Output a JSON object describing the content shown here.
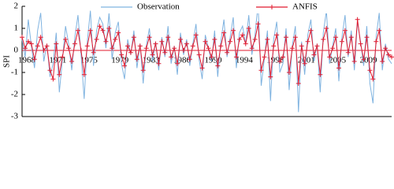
{
  "chart_data": {
    "type": "line",
    "y_label": "SPI",
    "categories": [
      "1968",
      null,
      null,
      null,
      null,
      null,
      null,
      null,
      null,
      null,
      "1971",
      null,
      null,
      null,
      null,
      null,
      null,
      null,
      null,
      null,
      "1975",
      null,
      null,
      null,
      null,
      null,
      null,
      null,
      null,
      null,
      "1979",
      null,
      null,
      null,
      null,
      null,
      null,
      null,
      null,
      null,
      "1983",
      null,
      null,
      null,
      null,
      null,
      null,
      null,
      null,
      null,
      "1986",
      null,
      null,
      null,
      null,
      null,
      null,
      null,
      null,
      null,
      "1990",
      null,
      null,
      null,
      null,
      null,
      null,
      null,
      null,
      null,
      "1994",
      null,
      null,
      null,
      null,
      null,
      null,
      null,
      null,
      null,
      "1998",
      null,
      null,
      null,
      null,
      null,
      null,
      null,
      null,
      null,
      "2001",
      null,
      null,
      null,
      null,
      null,
      null,
      null,
      null,
      null,
      "2005",
      null,
      null,
      null,
      null,
      null,
      null,
      null,
      null,
      null,
      "2009",
      null,
      null,
      null,
      null,
      null,
      null,
      null,
      null,
      null
    ],
    "series": [
      {
        "name": "Observation",
        "color": "#7fb3e0",
        "marker": false,
        "values": [
          0.5,
          -0.3,
          1.4,
          0.2,
          -0.8,
          0.9,
          1.7,
          -0.5,
          0.3,
          -1.2,
          -0.6,
          0.8,
          -1.9,
          -0.4,
          1.1,
          0.3,
          -0.9,
          0.6,
          1.6,
          -0.2,
          -2.2,
          0.4,
          1.8,
          -0.7,
          0.9,
          1.5,
          1.2,
          0.1,
          1.7,
          -0.4,
          0.8,
          1.3,
          -0.6,
          -1.3,
          0.5,
          -0.2,
          0.9,
          -0.8,
          0.3,
          -1.5,
          0.2,
          1.0,
          -0.5,
          0.4,
          -0.9,
          0.6,
          -0.3,
          1.1,
          -0.6,
          0.2,
          -1.1,
          0.8,
          -0.2,
          0.5,
          -0.7,
          0.3,
          1.2,
          -0.4,
          -1.3,
          0.7,
          0.1,
          -0.5,
          0.9,
          -1.2,
          0.4,
          1.4,
          -0.3,
          0.6,
          1.5,
          -0.8,
          0.8,
          1.1,
          0.3,
          1.6,
          -0.2,
          0.7,
          2.1,
          -1.6,
          -0.4,
          0.9,
          -2.3,
          0.5,
          1.3,
          -1.0,
          -0.6,
          1.0,
          -1.8,
          0.2,
          1.1,
          -2.8,
          0.4,
          -1.1,
          0.7,
          1.4,
          -0.5,
          0.3,
          -1.9,
          0.8,
          1.8,
          -0.6,
          0.2,
          1.0,
          -1.4,
          0.6,
          1.6,
          -0.3,
          0.9,
          -0.9,
          1.3,
          0.4,
          -0.7,
          1.1,
          -1.5,
          -2.4,
          0.6,
          1.7,
          -0.9,
          0.3,
          -0.4,
          -0.6
        ]
      },
      {
        "name": "ANFIS",
        "color": "#e0192e",
        "marker": true,
        "values": [
          0.6,
          0.1,
          0.4,
          0.3,
          -0.4,
          0.2,
          0.6,
          0.0,
          0.2,
          -0.9,
          -1.3,
          0.3,
          -1.1,
          -0.3,
          0.5,
          0.1,
          -0.5,
          0.3,
          0.9,
          0.0,
          -1.1,
          0.2,
          0.9,
          -0.1,
          0.5,
          1.1,
          0.9,
          0.4,
          1.0,
          0.1,
          0.5,
          0.8,
          -0.2,
          -0.7,
          0.2,
          -0.1,
          0.6,
          -0.4,
          0.2,
          -0.9,
          0.1,
          0.6,
          -0.2,
          0.3,
          -0.6,
          0.4,
          -0.1,
          0.6,
          -0.3,
          0.1,
          -0.6,
          0.5,
          0.0,
          0.3,
          -0.4,
          0.2,
          0.7,
          -0.2,
          -0.8,
          0.4,
          0.1,
          -0.3,
          0.5,
          -0.7,
          0.2,
          0.8,
          -0.1,
          0.4,
          0.9,
          -0.3,
          0.5,
          0.7,
          0.3,
          1.0,
          0.1,
          0.5,
          1.2,
          -0.9,
          -0.3,
          0.5,
          -1.2,
          0.2,
          0.7,
          -0.5,
          -0.3,
          0.6,
          -1.0,
          0.1,
          0.6,
          -1.5,
          0.2,
          -0.6,
          0.4,
          0.9,
          -0.2,
          0.2,
          -1.1,
          0.5,
          1.0,
          -0.3,
          0.1,
          0.6,
          -0.8,
          0.4,
          0.9,
          -0.1,
          0.6,
          -0.5,
          1.4,
          0.3,
          -0.4,
          0.6,
          -0.9,
          -1.3,
          0.4,
          0.9,
          -0.5,
          0.1,
          -0.2,
          -0.3
        ]
      }
    ],
    "ylim": [
      -3,
      2
    ],
    "yticks": [
      -3,
      -2,
      -1,
      0,
      1,
      2
    ],
    "zero_line_color": "#e0192e",
    "legend": "top"
  }
}
